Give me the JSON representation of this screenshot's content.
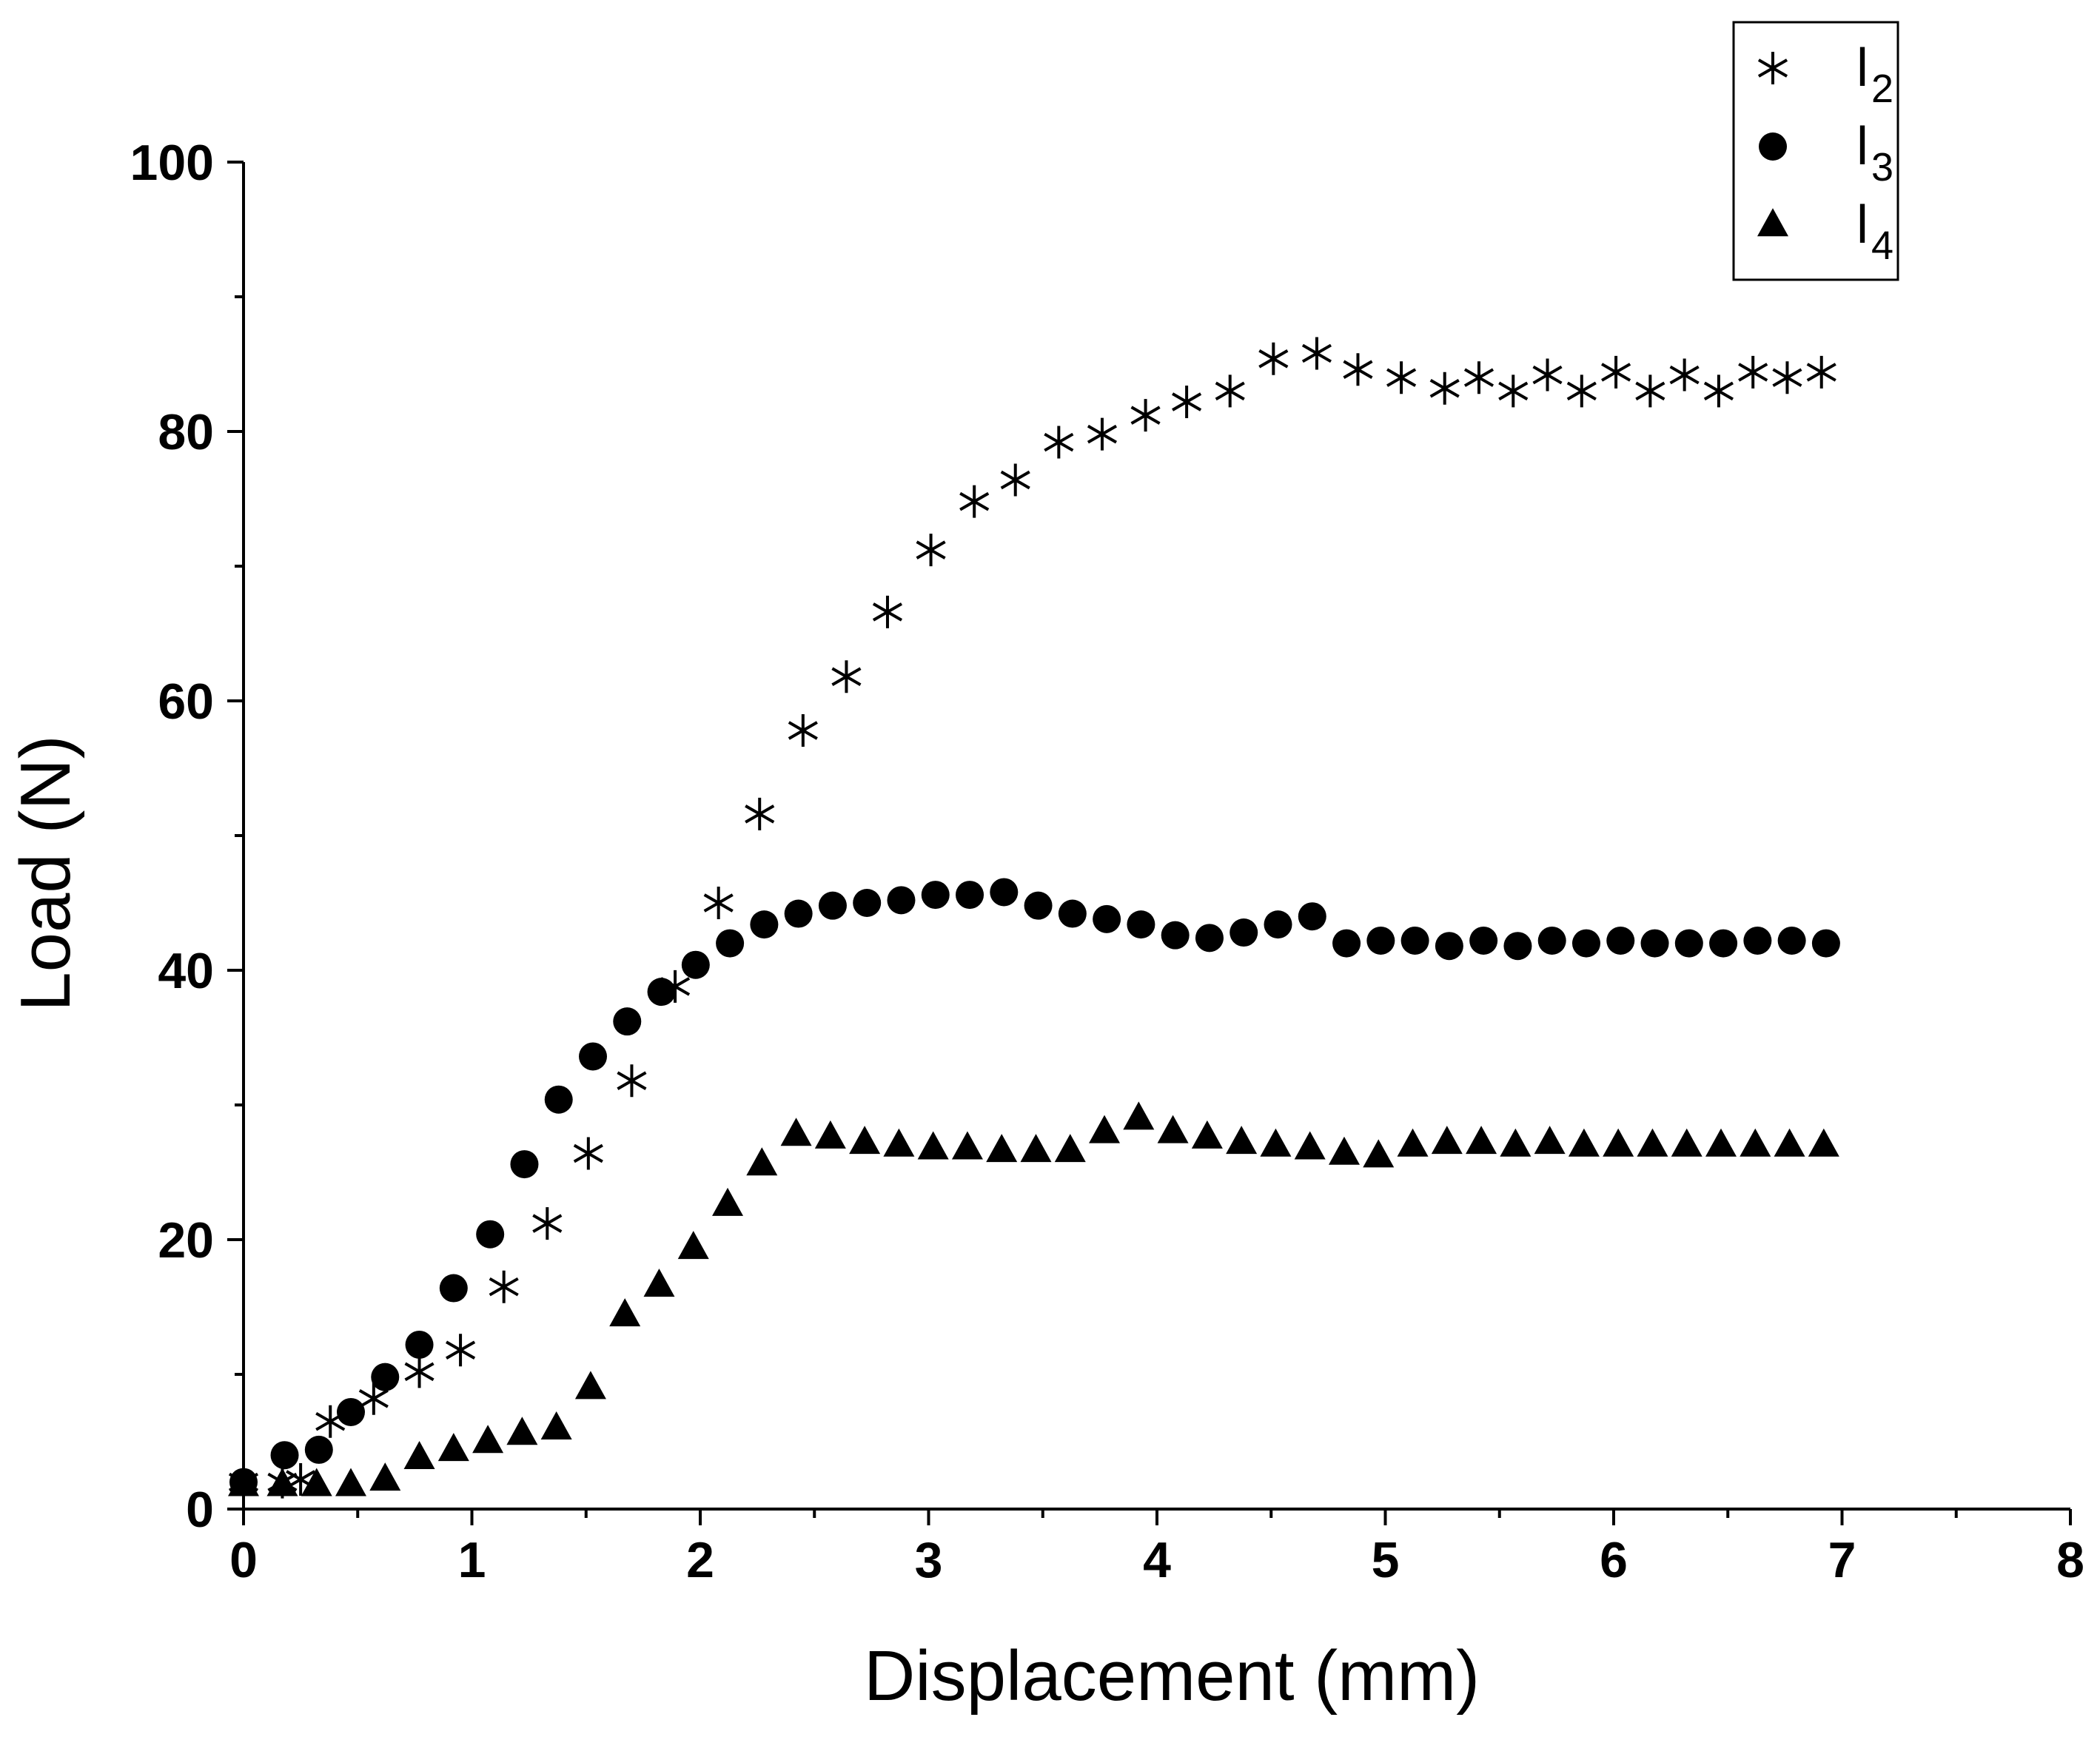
{
  "chart_data": {
    "type": "scatter",
    "title": "",
    "xlabel": "Displacement (mm)",
    "ylabel": "Load (N)",
    "xlim": [
      0,
      8
    ],
    "ylim": [
      0,
      100
    ],
    "xticks": [
      "0",
      "1",
      "2",
      "3",
      "4",
      "5",
      "6",
      "7",
      "8"
    ],
    "yticks": [
      "0",
      "20",
      "40",
      "60",
      "80",
      "100"
    ],
    "grid": false,
    "legend_position": "top-right",
    "series": [
      {
        "name": "l2",
        "label_main": "l",
        "label_sub": "2",
        "marker": "asterisk",
        "x": [
          0.0,
          0.17,
          0.25,
          0.38,
          0.57,
          0.77,
          0.95,
          1.14,
          1.33,
          1.51,
          1.7,
          1.89,
          2.08,
          2.26,
          2.45,
          2.64,
          2.82,
          3.01,
          3.2,
          3.38,
          3.57,
          3.76,
          3.95,
          4.13,
          4.32,
          4.51,
          4.7,
          4.88,
          5.07,
          5.26,
          5.41,
          5.56,
          5.71,
          5.86,
          6.01,
          6.16,
          6.31,
          6.46,
          6.61,
          6.76,
          6.91
        ],
        "y": [
          2.0,
          2.0,
          2.2,
          6.5,
          8.2,
          10.2,
          11.8,
          16.5,
          21.2,
          26.4,
          31.8,
          38.8,
          45.0,
          51.6,
          57.8,
          61.8,
          66.6,
          71.2,
          74.8,
          76.4,
          79.2,
          79.8,
          81.2,
          82.2,
          83.0,
          85.4,
          85.8,
          84.6,
          84.0,
          83.2,
          84.0,
          83.0,
          84.2,
          83.0,
          84.4,
          83.0,
          84.2,
          83.0,
          84.4,
          84.0,
          84.4
        ]
      },
      {
        "name": "l3",
        "label_main": "l",
        "label_sub": "3",
        "marker": "circle",
        "x": [
          0.0,
          0.18,
          0.33,
          0.47,
          0.62,
          0.77,
          0.92,
          1.08,
          1.23,
          1.38,
          1.53,
          1.68,
          1.83,
          1.98,
          2.13,
          2.28,
          2.43,
          2.58,
          2.73,
          2.88,
          3.03,
          3.18,
          3.33,
          3.48,
          3.63,
          3.78,
          3.93,
          4.08,
          4.23,
          4.38,
          4.53,
          4.68,
          4.83,
          4.98,
          5.13,
          5.28,
          5.43,
          5.58,
          5.73,
          5.88,
          6.03,
          6.18,
          6.33,
          6.48,
          6.63,
          6.78,
          6.93
        ],
        "y": [
          2.0,
          4.0,
          4.4,
          7.2,
          9.8,
          12.2,
          16.4,
          20.4,
          25.6,
          30.4,
          33.6,
          36.2,
          38.4,
          40.4,
          42.0,
          43.4,
          44.2,
          44.8,
          45.0,
          45.2,
          45.6,
          45.6,
          45.8,
          44.8,
          44.2,
          43.8,
          43.4,
          42.6,
          42.4,
          42.8,
          43.4,
          44.0,
          42.0,
          42.2,
          42.2,
          41.8,
          42.2,
          41.8,
          42.2,
          42.0,
          42.2,
          42.0,
          42.0,
          42.0,
          42.2,
          42.2,
          42.0
        ]
      },
      {
        "name": "l4",
        "label_main": "l",
        "label_sub": "4",
        "marker": "triangle",
        "x": [
          0.0,
          0.17,
          0.32,
          0.47,
          0.62,
          0.77,
          0.92,
          1.07,
          1.22,
          1.37,
          1.52,
          1.67,
          1.82,
          1.97,
          2.12,
          2.27,
          2.42,
          2.57,
          2.72,
          2.87,
          3.02,
          3.17,
          3.32,
          3.47,
          3.62,
          3.77,
          3.92,
          4.07,
          4.22,
          4.37,
          4.52,
          4.67,
          4.82,
          4.97,
          5.12,
          5.27,
          5.42,
          5.57,
          5.72,
          5.87,
          6.02,
          6.17,
          6.32,
          6.47,
          6.62,
          6.77,
          6.92
        ],
        "y": [
          1.8,
          1.8,
          1.8,
          1.8,
          2.2,
          3.8,
          4.4,
          5.0,
          5.6,
          6.0,
          9.0,
          14.4,
          16.6,
          19.4,
          22.6,
          25.6,
          27.8,
          27.6,
          27.2,
          27.0,
          26.8,
          26.8,
          26.6,
          26.6,
          26.6,
          28.0,
          29.0,
          28.0,
          27.6,
          27.2,
          27.0,
          26.8,
          26.4,
          26.2,
          27.0,
          27.2,
          27.2,
          27.0,
          27.2,
          27.0,
          27.0,
          27.0,
          27.0,
          27.0,
          27.0,
          27.0,
          27.0
        ]
      }
    ]
  }
}
